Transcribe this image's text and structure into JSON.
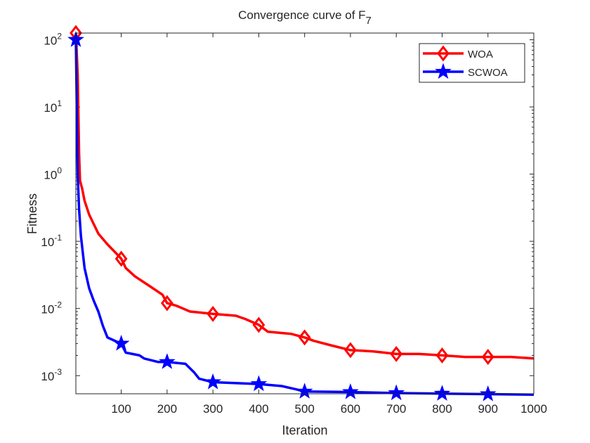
{
  "chart_data": {
    "type": "line",
    "title": "Convergence curve of F",
    "title_subscript": "7",
    "xlabel": "Iteration",
    "ylabel": "Fitness",
    "xlim": [
      1,
      1000
    ],
    "ylim_log10": [
      -3.27,
      2.1
    ],
    "yscale": "log",
    "xticks": [
      100,
      200,
      300,
      400,
      500,
      600,
      700,
      800,
      900,
      1000
    ],
    "yticks": [
      {
        "base": "10",
        "exp": "-3",
        "value": 0.001
      },
      {
        "base": "10",
        "exp": "-2",
        "value": 0.01
      },
      {
        "base": "10",
        "exp": "-1",
        "value": 0.1
      },
      {
        "base": "10",
        "exp": "0",
        "value": 1
      },
      {
        "base": "10",
        "exp": "1",
        "value": 10
      },
      {
        "base": "10",
        "exp": "2",
        "value": 100
      }
    ],
    "legend_position": "top-right",
    "series": [
      {
        "name": "WOA",
        "color": "#ff0000",
        "marker": "diamond",
        "x": [
          1,
          5,
          8,
          10,
          15,
          20,
          30,
          40,
          50,
          70,
          90,
          100,
          110,
          130,
          160,
          190,
          200,
          220,
          250,
          300,
          350,
          370,
          400,
          420,
          470,
          500,
          520,
          560,
          600,
          650,
          700,
          750,
          800,
          850,
          900,
          950,
          1000
        ],
        "y": [
          126,
          30,
          2,
          0.8,
          0.6,
          0.4,
          0.25,
          0.18,
          0.13,
          0.09,
          0.065,
          0.055,
          0.04,
          0.03,
          0.022,
          0.016,
          0.012,
          0.011,
          0.009,
          0.0083,
          0.0078,
          0.007,
          0.0057,
          0.0045,
          0.0042,
          0.0037,
          0.0033,
          0.0028,
          0.0024,
          0.0023,
          0.0021,
          0.0021,
          0.002,
          0.0019,
          0.0019,
          0.0019,
          0.0018
        ]
      },
      {
        "name": "SCWOA",
        "color": "#0000ff",
        "marker": "star",
        "x": [
          1,
          3,
          5,
          8,
          12,
          20,
          30,
          40,
          50,
          60,
          70,
          90,
          100,
          110,
          140,
          150,
          180,
          200,
          240,
          260,
          270,
          300,
          400,
          450,
          480,
          500,
          600,
          700,
          800,
          900,
          1000
        ],
        "y": [
          100,
          10,
          1,
          0.3,
          0.12,
          0.04,
          0.02,
          0.013,
          0.009,
          0.0055,
          0.0037,
          0.0032,
          0.003,
          0.0022,
          0.002,
          0.0018,
          0.0016,
          0.0016,
          0.0015,
          0.0011,
          0.0009,
          0.0008,
          0.00075,
          0.0007,
          0.00063,
          0.00058,
          0.00057,
          0.00055,
          0.00054,
          0.00053,
          0.00052
        ]
      }
    ],
    "marker_x": [
      1,
      100,
      200,
      300,
      400,
      500,
      600,
      700,
      800,
      900
    ]
  }
}
